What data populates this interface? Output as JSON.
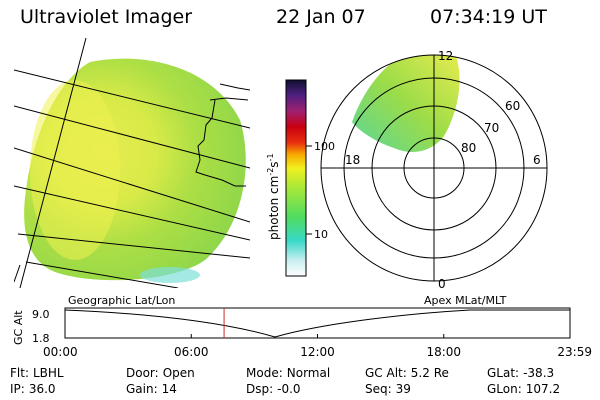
{
  "header": {
    "title": "Ultraviolet Imager",
    "date": "22 Jan 07",
    "time": "07:34:19 UT"
  },
  "colorbar": {
    "label": "photon cm",
    "label_sup1": "-2",
    "label_mid": "s",
    "label_sup2": "-1",
    "ticks": [
      "100",
      "10"
    ]
  },
  "polar_plot": {
    "top_label": "12",
    "left_label": "18",
    "right_label": "6",
    "bottom_label": "0",
    "lat_labels": [
      "60",
      "70",
      "80"
    ]
  },
  "timeline": {
    "left_title": "Geographic Lat/Lon",
    "right_title": "Apex MLat/MLT",
    "axis_label": "GC Alt",
    "y_max": "9.0",
    "y_min": "1.8",
    "time_ticks": [
      "00:00",
      "06:00",
      "12:00",
      "18:00",
      "23:59"
    ],
    "current_time_fraction": 0.315
  },
  "status": {
    "filter_label": "Flt:",
    "filter_value": "LBHL",
    "ip_label": "IP:",
    "ip_value": "36.0",
    "door_label": "Door:",
    "door_value": "Open",
    "gain_label": "Gain:",
    "gain_value": "14",
    "mode_label": "Mode:",
    "mode_value": "Normal",
    "dsp_label": "Dsp:",
    "dsp_value": "-0.0",
    "gcalt_label": "GC Alt:",
    "gcalt_value": "5.2 Re",
    "seq_label": "Seq:",
    "seq_value": "39",
    "glat_label": "GLat:",
    "glat_value": "-38.3",
    "glon_label": "GLon:",
    "glon_value": "107.2"
  },
  "colors": {
    "image_green": "#90d840",
    "image_yellow": "#e4ec50",
    "image_cyan": "#7fe0d8",
    "cursor_red": "#c83030"
  }
}
